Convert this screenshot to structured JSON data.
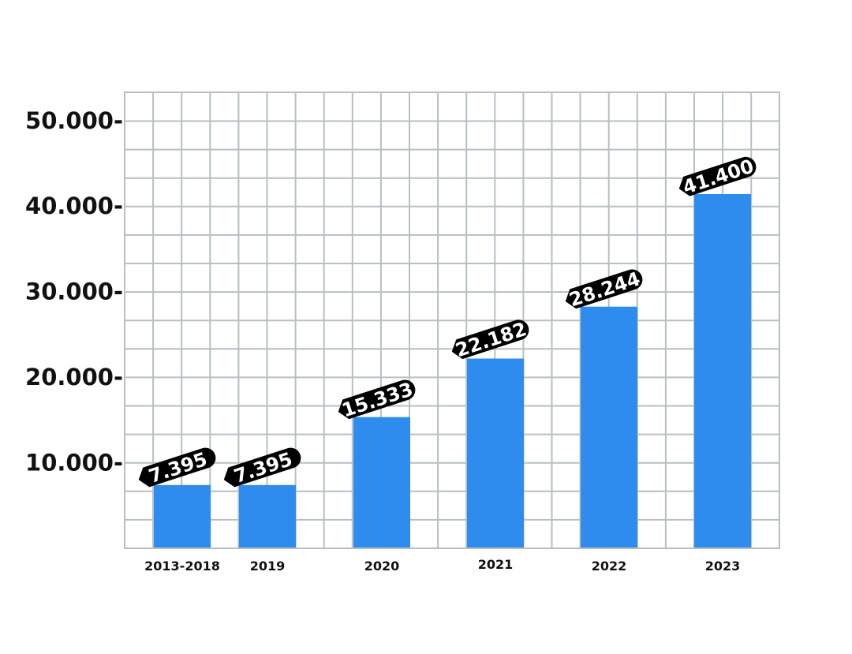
{
  "chart_data": {
    "type": "bar",
    "categories": [
      "2013-2018",
      "2019",
      "2020",
      "2021",
      "2022",
      "2023"
    ],
    "values": [
      7395,
      7395,
      15333,
      22182,
      28244,
      41400
    ],
    "data_labels": [
      "7.395",
      "7.395",
      "15.333",
      "22.182",
      "28.244",
      "41.400"
    ],
    "y_ticks": [
      {
        "value": 10000,
        "label": "10.000-"
      },
      {
        "value": 20000,
        "label": "20.000-"
      },
      {
        "value": 30000,
        "label": "30.000-"
      },
      {
        "value": 40000,
        "label": "40.000-"
      },
      {
        "value": 50000,
        "label": "50.000-"
      }
    ],
    "ylim": [
      0,
      53300
    ],
    "grid": true,
    "legend": "none",
    "colors": {
      "bar": "#2d8cee",
      "grid": "#b6bfc4",
      "label_bg": "#000000",
      "label_text": "#ffffff"
    }
  }
}
